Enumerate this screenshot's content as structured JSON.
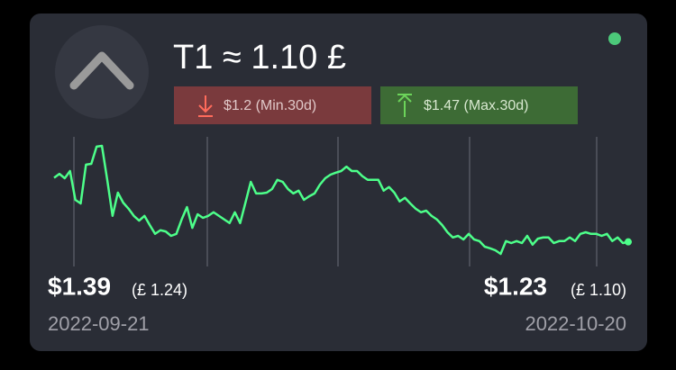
{
  "header": {
    "title": "T1 ≈ 1.10 £"
  },
  "badges": {
    "min": "$1.2 (Min.30d)",
    "max": "$1.47 (Max.30d)"
  },
  "start": {
    "price": "$1.39",
    "alt_price": "(£ 1.24)",
    "date": "2022-09-21"
  },
  "end": {
    "price": "$1.23",
    "alt_price": "(£ 1.10)",
    "date": "2022-10-20"
  },
  "chart_data": {
    "type": "line",
    "color": "#4dff8a",
    "values": [
      1.39,
      1.4,
      1.389,
      1.407,
      1.335,
      1.326,
      1.423,
      1.425,
      1.468,
      1.47,
      1.385,
      1.295,
      1.353,
      1.328,
      1.313,
      1.295,
      1.283,
      1.295,
      1.272,
      1.25,
      1.259,
      1.256,
      1.245,
      1.25,
      1.286,
      1.317,
      1.265,
      1.299,
      1.29,
      1.295,
      1.304,
      1.295,
      1.286,
      1.277,
      1.304,
      1.277,
      1.328,
      1.38,
      1.351,
      1.351,
      1.353,
      1.362,
      1.385,
      1.38,
      1.362,
      1.351,
      1.358,
      1.335,
      1.344,
      1.351,
      1.373,
      1.389,
      1.398,
      1.403,
      1.407,
      1.418,
      1.407,
      1.407,
      1.394,
      1.385,
      1.385,
      1.385,
      1.358,
      1.367,
      1.353,
      1.331,
      1.34,
      1.326,
      1.313,
      1.304,
      1.308,
      1.295,
      1.286,
      1.272,
      1.254,
      1.241,
      1.245,
      1.236,
      1.25,
      1.236,
      1.232,
      1.218,
      1.214,
      1.209,
      1.2,
      1.232,
      1.227,
      1.232,
      1.227,
      1.245,
      1.223,
      1.238,
      1.241,
      1.241,
      1.227,
      1.232,
      1.232,
      1.241,
      1.232,
      1.25,
      1.254,
      1.25,
      1.25,
      1.245,
      1.25,
      1.232,
      1.241,
      1.227,
      1.23
    ]
  }
}
